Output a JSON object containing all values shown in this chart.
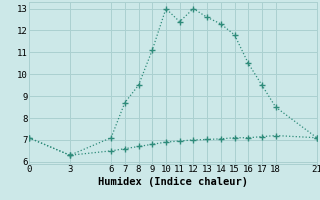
{
  "upper_x": [
    0,
    3,
    6,
    7,
    8,
    9,
    10,
    11,
    12,
    13,
    14,
    15,
    16,
    17,
    18,
    21
  ],
  "upper_y": [
    7.1,
    6.3,
    7.1,
    8.7,
    9.5,
    11.1,
    13.0,
    12.4,
    13.0,
    12.6,
    12.3,
    11.8,
    10.5,
    9.5,
    8.5,
    7.1
  ],
  "lower_x": [
    0,
    3,
    6,
    7,
    8,
    9,
    10,
    11,
    12,
    13,
    14,
    15,
    16,
    17,
    18,
    21
  ],
  "lower_y": [
    7.1,
    6.3,
    6.5,
    6.6,
    6.7,
    6.8,
    6.9,
    6.95,
    7.0,
    7.02,
    7.05,
    7.1,
    7.1,
    7.15,
    7.2,
    7.1
  ],
  "line_color": "#2e8b7a",
  "bg_color": "#cce8e8",
  "grid_color": "#aad0d0",
  "xlabel": "Humidex (Indice chaleur)",
  "xlim": [
    0,
    21
  ],
  "ylim": [
    5.9,
    13.3
  ],
  "xticks": [
    0,
    3,
    6,
    7,
    8,
    9,
    10,
    11,
    12,
    13,
    14,
    15,
    16,
    17,
    18,
    21
  ],
  "yticks": [
    6,
    7,
    8,
    9,
    10,
    11,
    12,
    13
  ],
  "tick_fontsize": 6.5,
  "xlabel_fontsize": 7.5
}
